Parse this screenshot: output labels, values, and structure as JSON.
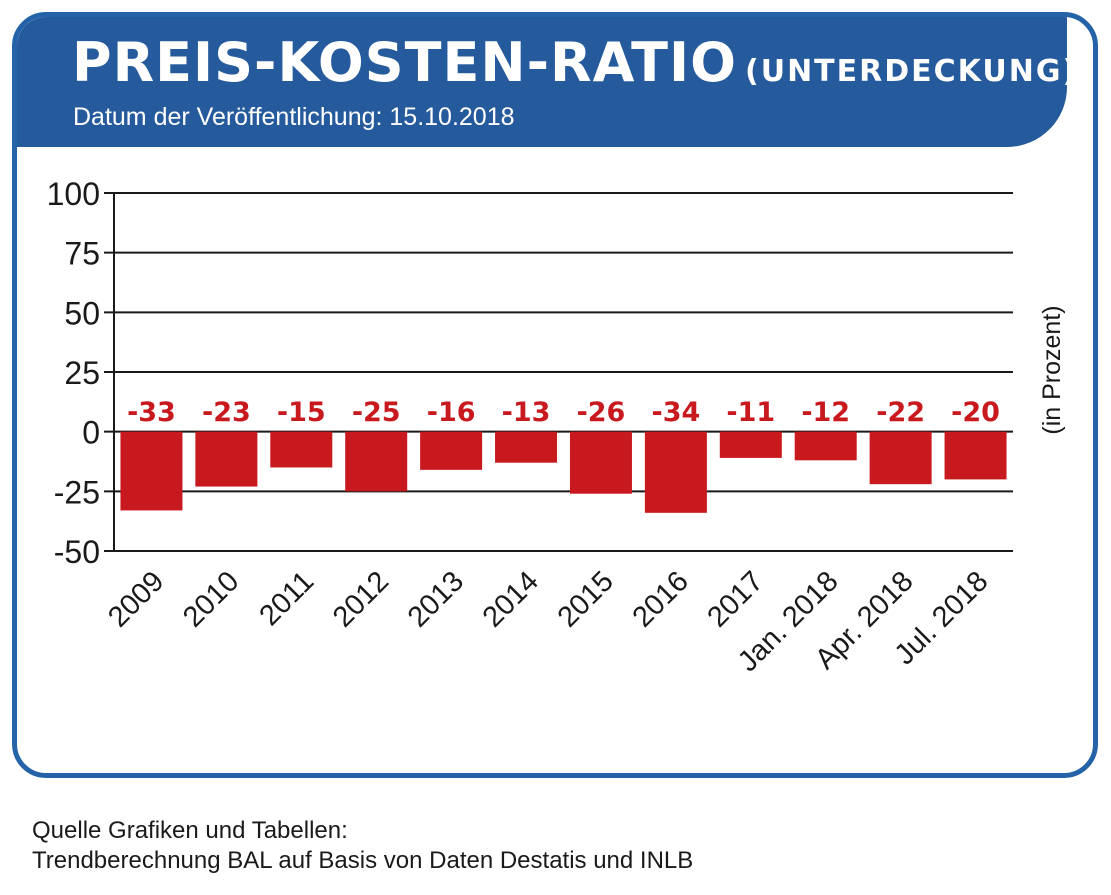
{
  "header": {
    "title": "PREIS-KOSTEN-RATIO",
    "title_suffix": "(UNTERDECKUNG)",
    "publication_date": "Datum der Veröffentlichung: 15.10.2018"
  },
  "colors": {
    "header_blue": "#255a9c",
    "border_blue": "#2563a8",
    "bar_red": "#c8191f",
    "label_red": "#c8191f"
  },
  "chart_data": {
    "type": "bar",
    "categories": [
      "2009",
      "2010",
      "2011",
      "2012",
      "2013",
      "2014",
      "2015",
      "2016",
      "2017",
      "Jan. 2018",
      "Apr. 2018",
      "Jul. 2018"
    ],
    "values": [
      -33,
      -23,
      -15,
      -25,
      -16,
      -13,
      -26,
      -34,
      -11,
      -12,
      -22,
      -20
    ],
    "data_labels": [
      "-33",
      "-23",
      "-15",
      "-25",
      "-16",
      "-13",
      "-26",
      "-34",
      "-11",
      "-12",
      "-22",
      "-20"
    ],
    "yticks": [
      100,
      75,
      50,
      25,
      0,
      -25,
      -50
    ],
    "ytick_labels": [
      "100",
      "75",
      "50",
      "25",
      "0",
      "-25",
      "-50"
    ],
    "ylim": [
      -50,
      100
    ],
    "ylabel": "(in Prozent)",
    "xlabel": "",
    "grid": true,
    "legend": "none"
  },
  "footer": {
    "source_line1": "Quelle Grafiken und Tabellen:",
    "source_line2": "Trendberechnung BAL auf Basis von Daten Destatis und INLB"
  }
}
